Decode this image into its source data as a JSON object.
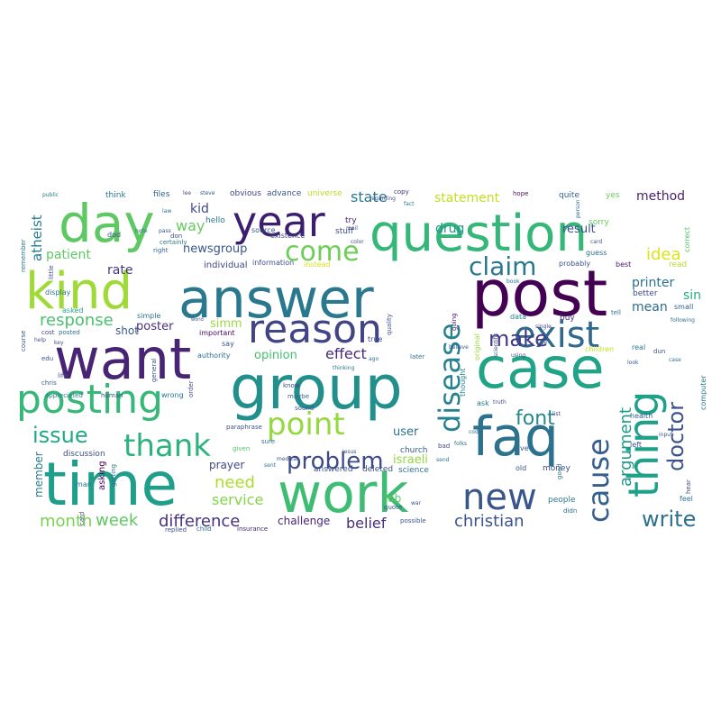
{
  "wordcloud": {
    "words": [
      {
        "text": "question",
        "color": "#35b779"
      },
      {
        "text": "answer",
        "color": "#2a788e"
      },
      {
        "text": "post",
        "color": "#440154"
      },
      {
        "text": "want",
        "color": "#482475"
      },
      {
        "text": "group",
        "color": "#21908d"
      },
      {
        "text": "case",
        "color": "#20a386"
      },
      {
        "text": "time",
        "color": "#1f9e89"
      },
      {
        "text": "work",
        "color": "#3fbc73"
      },
      {
        "text": "kind",
        "color": "#a0da39"
      },
      {
        "text": "day",
        "color": "#5ec962"
      },
      {
        "text": "year",
        "color": "#3b1f6e"
      },
      {
        "text": "faq",
        "color": "#2c718e"
      },
      {
        "text": "posting",
        "color": "#37b878"
      },
      {
        "text": "reason",
        "color": "#414487"
      },
      {
        "text": "thing",
        "color": "#1fa088"
      },
      {
        "text": "new",
        "color": "#39568c"
      },
      {
        "text": "exist",
        "color": "#31688e"
      },
      {
        "text": "disease",
        "color": "#26828e"
      },
      {
        "text": "cause",
        "color": "#355f8d"
      },
      {
        "text": "thank",
        "color": "#2db27d"
      },
      {
        "text": "point",
        "color": "#95d840"
      },
      {
        "text": "problem",
        "color": "#3e4a89"
      },
      {
        "text": "claim",
        "color": "#2a788e"
      },
      {
        "text": "come",
        "color": "#6ece58"
      },
      {
        "text": "make",
        "color": "#443983"
      },
      {
        "text": "doctor",
        "color": "#3b528b"
      },
      {
        "text": "write",
        "color": "#2d708e"
      },
      {
        "text": "font",
        "color": "#23898e"
      },
      {
        "text": "argument",
        "color": "#1f9a8a"
      },
      {
        "text": "issue",
        "color": "#22a884"
      },
      {
        "text": "response",
        "color": "#4ac16d"
      },
      {
        "text": "effect",
        "color": "#482878"
      },
      {
        "text": "difference",
        "color": "#46327e"
      },
      {
        "text": "christian",
        "color": "#3b528b"
      },
      {
        "text": "week",
        "color": "#5ec962"
      },
      {
        "text": "month",
        "color": "#7ad151"
      },
      {
        "text": "need",
        "color": "#addc30"
      },
      {
        "text": "service",
        "color": "#84d44b"
      },
      {
        "text": "belief",
        "color": "#472d7b"
      },
      {
        "text": "statement",
        "color": "#c2df23"
      },
      {
        "text": "method",
        "color": "#481f70"
      },
      {
        "text": "idea",
        "color": "#dde318"
      },
      {
        "text": "printer",
        "color": "#2c718e"
      },
      {
        "text": "mean",
        "color": "#2e6e8e"
      },
      {
        "text": "sin",
        "color": "#25ac82"
      },
      {
        "text": "result",
        "color": "#3d4e8a"
      },
      {
        "text": "drug",
        "color": "#21918c"
      },
      {
        "text": "state",
        "color": "#2a788e"
      },
      {
        "text": "atheist",
        "color": "#287c8e"
      },
      {
        "text": "patient",
        "color": "#5ec962"
      },
      {
        "text": "kid",
        "color": "#3e4989"
      },
      {
        "text": "way",
        "color": "#65cb5e"
      },
      {
        "text": "newsgroup",
        "color": "#39568c"
      },
      {
        "text": "individual",
        "color": "#404688"
      },
      {
        "text": "rate",
        "color": "#453781"
      },
      {
        "text": "opinion",
        "color": "#44bf70"
      },
      {
        "text": "poster",
        "color": "#46307e"
      },
      {
        "text": "simm",
        "color": "#9bd93c"
      },
      {
        "text": "shot",
        "color": "#375b8d"
      },
      {
        "text": "user",
        "color": "#2d708e"
      },
      {
        "text": "israeli",
        "color": "#90d743"
      },
      {
        "text": "prayer",
        "color": "#3f4788"
      },
      {
        "text": "challenge",
        "color": "#482475"
      },
      {
        "text": "job",
        "color": "#5cc863"
      },
      {
        "text": "member",
        "color": "#287d8e"
      },
      {
        "text": "asking",
        "color": "#440154"
      },
      {
        "text": "discussion",
        "color": "#3d4e8a"
      },
      {
        "text": "church",
        "color": "#355e8d"
      },
      {
        "text": "science",
        "color": "#2d708e"
      },
      {
        "text": "deleted",
        "color": "#3b528b"
      },
      {
        "text": "answered",
        "color": "#3b528b"
      },
      {
        "text": "people",
        "color": "#2a788e"
      },
      {
        "text": "money",
        "color": "#3e4c8a"
      },
      {
        "text": "think",
        "color": "#2c728e"
      },
      {
        "text": "files",
        "color": "#32648e"
      },
      {
        "text": "obvious",
        "color": "#3f4889"
      },
      {
        "text": "advance",
        "color": "#3b528b"
      },
      {
        "text": "universe",
        "color": "#bade28"
      },
      {
        "text": "copy",
        "color": "#472c7a"
      },
      {
        "text": "hope",
        "color": "#471365"
      },
      {
        "text": "quite",
        "color": "#34608d"
      },
      {
        "text": "yes",
        "color": "#6ccd5a"
      },
      {
        "text": "sorry",
        "color": "#65cb5e"
      },
      {
        "text": "correct",
        "color": "#52c569"
      },
      {
        "text": "hello",
        "color": "#2a788e"
      },
      {
        "text": "try",
        "color": "#482475"
      },
      {
        "text": "stuff",
        "color": "#3f4889"
      },
      {
        "text": "guess",
        "color": "#2e6f8e"
      },
      {
        "text": "probably",
        "color": "#3b528b"
      },
      {
        "text": "best",
        "color": "#481668"
      },
      {
        "text": "read",
        "color": "#b5de2b"
      },
      {
        "text": "better",
        "color": "#3e4a89"
      },
      {
        "text": "tell",
        "color": "#2b748e"
      },
      {
        "text": "small",
        "color": "#34608d"
      },
      {
        "text": "buy",
        "color": "#472f7d"
      },
      {
        "text": "data",
        "color": "#277f8e"
      },
      {
        "text": "say",
        "color": "#3b528b"
      },
      {
        "text": "authority",
        "color": "#2e6e8e"
      },
      {
        "text": "important",
        "color": "#460b5e"
      },
      {
        "text": "simple",
        "color": "#2b758e"
      },
      {
        "text": "display",
        "color": "#2a788e"
      },
      {
        "text": "information",
        "color": "#3b528b"
      },
      {
        "text": "instead",
        "color": "#d8e219"
      },
      {
        "text": "source",
        "color": "#375a8c"
      },
      {
        "text": "existence",
        "color": "#3f4788"
      },
      {
        "text": "remember",
        "color": "#2c718e"
      },
      {
        "text": "course",
        "color": "#3b528b"
      },
      {
        "text": "asked",
        "color": "#22a785"
      },
      {
        "text": "cost",
        "color": "#3e4c8a"
      },
      {
        "text": "posted",
        "color": "#2c718e"
      },
      {
        "text": "edu",
        "color": "#3a548c"
      },
      {
        "text": "chris",
        "color": "#35608d"
      },
      {
        "text": "life",
        "color": "#3b528b"
      },
      {
        "text": "know",
        "color": "#3e4a89"
      },
      {
        "text": "maybe",
        "color": "#33638d"
      },
      {
        "text": "sound",
        "color": "#3b528b"
      },
      {
        "text": "sure",
        "color": "#2e6e8e"
      },
      {
        "text": "given",
        "color": "#52c569"
      },
      {
        "text": "paraphrase",
        "color": "#3b528b"
      },
      {
        "text": "wrong",
        "color": "#2a788e"
      },
      {
        "text": "order",
        "color": "#3f4889"
      },
      {
        "text": "ask",
        "color": "#2c728e"
      },
      {
        "text": "true",
        "color": "#3f4889"
      },
      {
        "text": "later",
        "color": "#2e6e8e"
      },
      {
        "text": "quality",
        "color": "#3b528b"
      },
      {
        "text": "going",
        "color": "#48186a"
      },
      {
        "text": "original",
        "color": "#9bd93c"
      },
      {
        "text": "thought",
        "color": "#25838e"
      },
      {
        "text": "children",
        "color": "#c2df23"
      },
      {
        "text": "real",
        "color": "#2a788e"
      },
      {
        "text": "health",
        "color": "#33638d"
      },
      {
        "text": "left",
        "color": "#3b528b"
      },
      {
        "text": "feel",
        "color": "#2c728e"
      },
      {
        "text": "hear",
        "color": "#3e4c8a"
      },
      {
        "text": "computer",
        "color": "#2a788e"
      },
      {
        "text": "ve",
        "color": "#3b528b"
      },
      {
        "text": "bad",
        "color": "#3e4a89"
      },
      {
        "text": "old",
        "color": "#3b528b"
      },
      {
        "text": "good",
        "color": "#2e6e8e"
      },
      {
        "text": "possible",
        "color": "#3b528b"
      },
      {
        "text": "man",
        "color": "#2a788e"
      },
      {
        "text": "card",
        "color": "#3f4889"
      },
      {
        "text": "replied",
        "color": "#3b528b"
      },
      {
        "text": "child",
        "color": "#2c718e"
      },
      {
        "text": "insurance",
        "color": "#482475"
      },
      {
        "text": "quote",
        "color": "#3b528b"
      },
      {
        "text": "appreciated",
        "color": "#2a788e"
      },
      {
        "text": "human",
        "color": "#3e4a89"
      },
      {
        "text": "getting",
        "color": "#2c718e"
      },
      {
        "text": "general",
        "color": "#3b528b"
      },
      {
        "text": "little",
        "color": "#3e4c8a"
      },
      {
        "text": "certainly",
        "color": "#2a788e"
      },
      {
        "text": "don",
        "color": "#3b528b"
      },
      {
        "text": "right",
        "color": "#33638d"
      },
      {
        "text": "regarding",
        "color": "#3b528b"
      },
      {
        "text": "person",
        "color": "#2e6e8e"
      },
      {
        "text": "scientific",
        "color": "#3b528b"
      },
      {
        "text": "thinking",
        "color": "#2a788e"
      },
      {
        "text": "truth",
        "color": "#3e4a89"
      },
      {
        "text": "dun",
        "color": "#3b528b"
      },
      {
        "text": "following",
        "color": "#2c728e"
      },
      {
        "text": "dod",
        "color": "#3b528b"
      },
      {
        "text": "public",
        "color": "#2a788e"
      },
      {
        "text": "lee",
        "color": "#3e4a89"
      },
      {
        "text": "steve",
        "color": "#3b528b"
      },
      {
        "text": "law",
        "color": "#2e6e8e"
      },
      {
        "text": "pass",
        "color": "#3b528b"
      },
      {
        "text": "note",
        "color": "#2c718e"
      },
      {
        "text": "help",
        "color": "#3b528b"
      },
      {
        "text": "key",
        "color": "#3e4a89"
      },
      {
        "text": "world",
        "color": "#3b528b"
      },
      {
        "text": "sent",
        "color": "#2a788e"
      },
      {
        "text": "medical",
        "color": "#3b528b"
      },
      {
        "text": "send",
        "color": "#2c718e"
      },
      {
        "text": "input",
        "color": "#3b528b"
      },
      {
        "text": "didn",
        "color": "#2e6e8e"
      },
      {
        "text": "mail",
        "color": "#3b528b"
      },
      {
        "text": "fact",
        "color": "#2a788e"
      },
      {
        "text": "single",
        "color": "#3e4a89"
      },
      {
        "text": "color",
        "color": "#3b528b"
      },
      {
        "text": "code",
        "color": "#2c718e"
      },
      {
        "text": "card",
        "color": "#3b528b"
      },
      {
        "text": "book",
        "color": "#2a788e"
      },
      {
        "text": "look",
        "color": "#3b528b"
      },
      {
        "text": "war",
        "color": "#3e4a89"
      },
      {
        "text": "believe",
        "color": "#3b528b"
      },
      {
        "text": "folks",
        "color": "#2e6e8e"
      },
      {
        "text": "sale",
        "color": "#3b528b"
      },
      {
        "text": "ago",
        "color": "#2a788e"
      },
      {
        "text": "jesus",
        "color": "#3b528b"
      },
      {
        "text": "list",
        "color": "#3e4a89"
      },
      {
        "text": "case",
        "color": "#2c718e"
      },
      {
        "text": "using",
        "color": "#3b528b"
      }
    ]
  }
}
